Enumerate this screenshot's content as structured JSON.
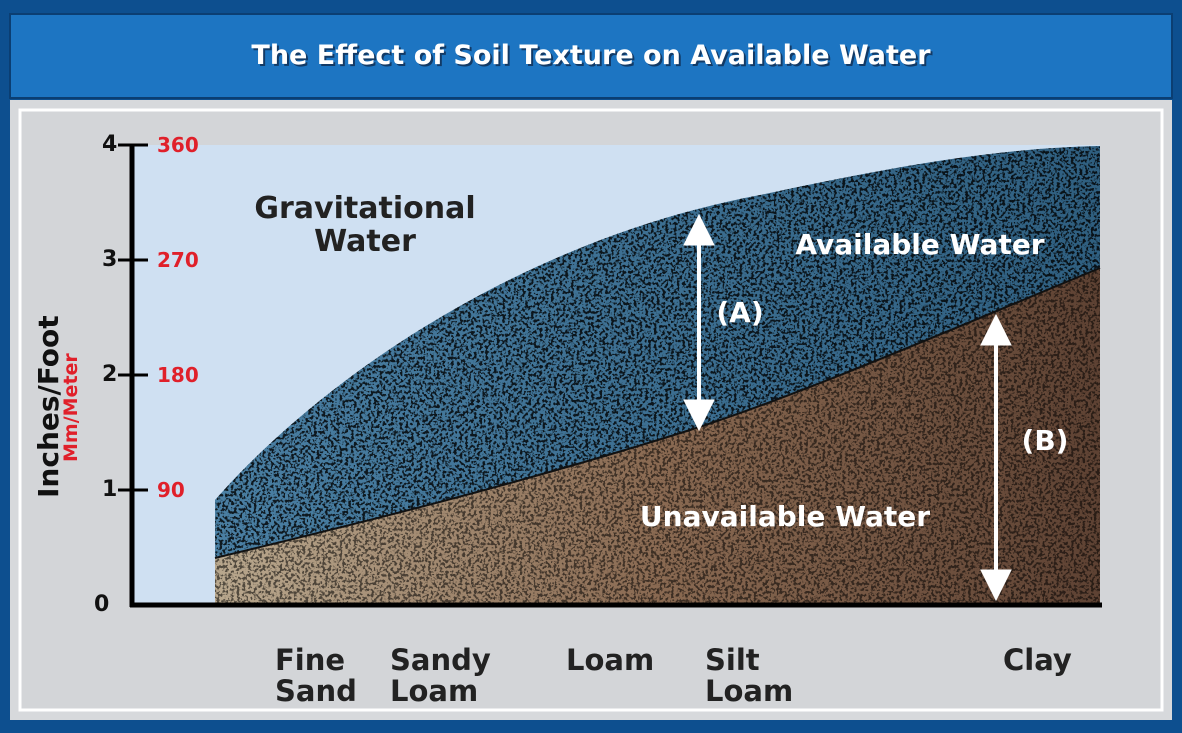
{
  "header": {
    "title": "The Effect of Soil Texture on Available Water"
  },
  "axes": {
    "y_label": "Inches/Foot",
    "y2_label": "Mm/Meter",
    "y_ticks": [
      "0",
      "1",
      "2",
      "3",
      "4"
    ],
    "y2_ticks": [
      "90",
      "180",
      "270",
      "360"
    ],
    "x_labels": [
      "Fine Sand",
      "Sandy Loam",
      "Loam",
      "Silt Loam",
      "Clay"
    ]
  },
  "regions": {
    "gravitational": "Gravitational Water",
    "available": "Available Water",
    "unavailable": "Unavailable Water"
  },
  "arrows": {
    "a": "(A)",
    "b": "(B)"
  }
}
